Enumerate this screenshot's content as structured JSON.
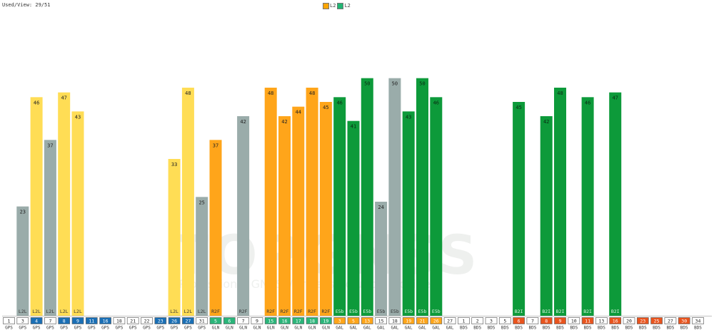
{
  "header": {
    "used_view": "Used/View: 29/51"
  },
  "legend": [
    {
      "name": "L2",
      "color": "#ffa500"
    },
    {
      "name": "L2",
      "color": "#22b573"
    }
  ],
  "watermark": {
    "main": "TOPGNSS",
    "sub": "Professional GNSS Wireless Solution Provider"
  },
  "colors": {
    "gray": "#9aacaa",
    "yellow": "#ffdd55",
    "orange": "#ffa51a",
    "green": "#0d9a3a",
    "prn_blue": "#1a6fb5",
    "prn_green": "#2bb57a",
    "prn_orange": "#ffa51a",
    "prn_red": "#e8541e",
    "prn_white": "#ffffff"
  },
  "chart_data": {
    "type": "bar",
    "ylim": [
      0,
      60
    ],
    "satellites": [
      {
        "prn": "1",
        "system": "GPS",
        "prn_color": "white",
        "value": null,
        "signal": "",
        "bar_color": null
      },
      {
        "prn": "3",
        "system": "GPS",
        "prn_color": "white",
        "value": 23,
        "signal": "L2L",
        "bar_color": "gray"
      },
      {
        "prn": "4",
        "system": "GPS",
        "prn_color": "blue",
        "value": 46,
        "signal": "L2L",
        "bar_color": "yellow"
      },
      {
        "prn": "7",
        "system": "GPS",
        "prn_color": "white",
        "value": 37,
        "signal": "L2L",
        "bar_color": "gray"
      },
      {
        "prn": "8",
        "system": "GPS",
        "prn_color": "blue",
        "value": 47,
        "signal": "L2L",
        "bar_color": "yellow"
      },
      {
        "prn": "9",
        "system": "GPS",
        "prn_color": "blue",
        "value": 43,
        "signal": "L2L",
        "bar_color": "yellow"
      },
      {
        "prn": "11",
        "system": "GPS",
        "prn_color": "blue",
        "value": null,
        "signal": "",
        "bar_color": null
      },
      {
        "prn": "16",
        "system": "GPS",
        "prn_color": "blue",
        "value": null,
        "signal": "",
        "bar_color": null
      },
      {
        "prn": "18",
        "system": "GPS",
        "prn_color": "white",
        "value": null,
        "signal": "",
        "bar_color": null
      },
      {
        "prn": "21",
        "system": "GPS",
        "prn_color": "white",
        "value": null,
        "signal": "",
        "bar_color": null
      },
      {
        "prn": "22",
        "system": "GPS",
        "prn_color": "white",
        "value": null,
        "signal": "",
        "bar_color": null
      },
      {
        "prn": "23",
        "system": "GPS",
        "prn_color": "blue",
        "value": null,
        "signal": "",
        "bar_color": null
      },
      {
        "prn": "26",
        "system": "GPS",
        "prn_color": "blue",
        "value": 33,
        "signal": "L2L",
        "bar_color": "yellow"
      },
      {
        "prn": "27",
        "system": "GPS",
        "prn_color": "blue",
        "value": 48,
        "signal": "L2L",
        "bar_color": "yellow"
      },
      {
        "prn": "31",
        "system": "GPS",
        "prn_color": "white",
        "value": 25,
        "signal": "L2L",
        "bar_color": "gray"
      },
      {
        "prn": "5",
        "system": "GLN",
        "prn_color": "green",
        "value": 37,
        "signal": "R2F",
        "bar_color": "orange"
      },
      {
        "prn": "6",
        "system": "GLN",
        "prn_color": "green",
        "value": null,
        "signal": "",
        "bar_color": null
      },
      {
        "prn": "7",
        "system": "GLN",
        "prn_color": "white",
        "value": 42,
        "signal": "R2F",
        "bar_color": "gray"
      },
      {
        "prn": "9",
        "system": "GLN",
        "prn_color": "white",
        "value": null,
        "signal": "",
        "bar_color": null
      },
      {
        "prn": "15",
        "system": "GLN",
        "prn_color": "green",
        "value": 48,
        "signal": "R2F",
        "bar_color": "orange"
      },
      {
        "prn": "16",
        "system": "GLN",
        "prn_color": "green",
        "value": 42,
        "signal": "R2F",
        "bar_color": "orange"
      },
      {
        "prn": "17",
        "system": "GLN",
        "prn_color": "green",
        "value": 44,
        "signal": "R2F",
        "bar_color": "orange"
      },
      {
        "prn": "18",
        "system": "GLN",
        "prn_color": "green",
        "value": 48,
        "signal": "R2F",
        "bar_color": "orange"
      },
      {
        "prn": "19",
        "system": "GLN",
        "prn_color": "green",
        "value": 45,
        "signal": "R2F",
        "bar_color": "orange"
      },
      {
        "prn": "3",
        "system": "GAL",
        "prn_color": "orange",
        "value": 46,
        "signal": "E5b",
        "bar_color": "green"
      },
      {
        "prn": "5",
        "system": "GAL",
        "prn_color": "orange",
        "value": 41,
        "signal": "E5b",
        "bar_color": "green"
      },
      {
        "prn": "13",
        "system": "GAL",
        "prn_color": "orange",
        "value": 50,
        "signal": "E5b",
        "bar_color": "green"
      },
      {
        "prn": "15",
        "system": "GAL",
        "prn_color": "white",
        "value": 24,
        "signal": "E5b",
        "bar_color": "gray"
      },
      {
        "prn": "18",
        "system": "GAL",
        "prn_color": "white",
        "value": 50,
        "signal": "E5b",
        "bar_color": "gray"
      },
      {
        "prn": "19",
        "system": "GAL",
        "prn_color": "orange",
        "value": 43,
        "signal": "E5b",
        "bar_color": "green"
      },
      {
        "prn": "21",
        "system": "GAL",
        "prn_color": "orange",
        "value": 50,
        "signal": "E5b",
        "bar_color": "green"
      },
      {
        "prn": "26",
        "system": "GAL",
        "prn_color": "orange",
        "value": 46,
        "signal": "E5b",
        "bar_color": "green"
      },
      {
        "prn": "27",
        "system": "GAL",
        "prn_color": "white",
        "value": null,
        "signal": "",
        "bar_color": null
      },
      {
        "prn": "1",
        "system": "BDS",
        "prn_color": "white",
        "value": null,
        "signal": "",
        "bar_color": null
      },
      {
        "prn": "2",
        "system": "BDS",
        "prn_color": "white",
        "value": null,
        "signal": "",
        "bar_color": null
      },
      {
        "prn": "3",
        "system": "BDS",
        "prn_color": "white",
        "value": null,
        "signal": "",
        "bar_color": null
      },
      {
        "prn": "5",
        "system": "BDS",
        "prn_color": "white",
        "value": null,
        "signal": "",
        "bar_color": null
      },
      {
        "prn": "6",
        "system": "BDS",
        "prn_color": "red",
        "value": 45,
        "signal": "B2I",
        "bar_color": "green"
      },
      {
        "prn": "7",
        "system": "BDS",
        "prn_color": "white",
        "value": null,
        "signal": "",
        "bar_color": null
      },
      {
        "prn": "8",
        "system": "BDS",
        "prn_color": "red",
        "value": 42,
        "signal": "B2I",
        "bar_color": "green"
      },
      {
        "prn": "9",
        "system": "BDS",
        "prn_color": "red",
        "value": 48,
        "signal": "B2I",
        "bar_color": "green"
      },
      {
        "prn": "10",
        "system": "BDS",
        "prn_color": "white",
        "value": null,
        "signal": "",
        "bar_color": null
      },
      {
        "prn": "11",
        "system": "BDS",
        "prn_color": "red",
        "value": 46,
        "signal": "B2I",
        "bar_color": "green"
      },
      {
        "prn": "13",
        "system": "BDS",
        "prn_color": "white",
        "value": null,
        "signal": "",
        "bar_color": null
      },
      {
        "prn": "16",
        "system": "BDS",
        "prn_color": "red",
        "value": 47,
        "signal": "B2I",
        "bar_color": "green"
      },
      {
        "prn": "20",
        "system": "BDS",
        "prn_color": "white",
        "value": null,
        "signal": "",
        "bar_color": null
      },
      {
        "prn": "23",
        "system": "BDS",
        "prn_color": "red",
        "value": null,
        "signal": "",
        "bar_color": null
      },
      {
        "prn": "25",
        "system": "BDS",
        "prn_color": "red",
        "value": null,
        "signal": "",
        "bar_color": null
      },
      {
        "prn": "27",
        "system": "BDS",
        "prn_color": "white",
        "value": null,
        "signal": "",
        "bar_color": null
      },
      {
        "prn": "30",
        "system": "BDS",
        "prn_color": "red",
        "value": null,
        "signal": "",
        "bar_color": null
      },
      {
        "prn": "34",
        "system": "BDS",
        "prn_color": "white",
        "value": null,
        "signal": "",
        "bar_color": null
      }
    ]
  }
}
